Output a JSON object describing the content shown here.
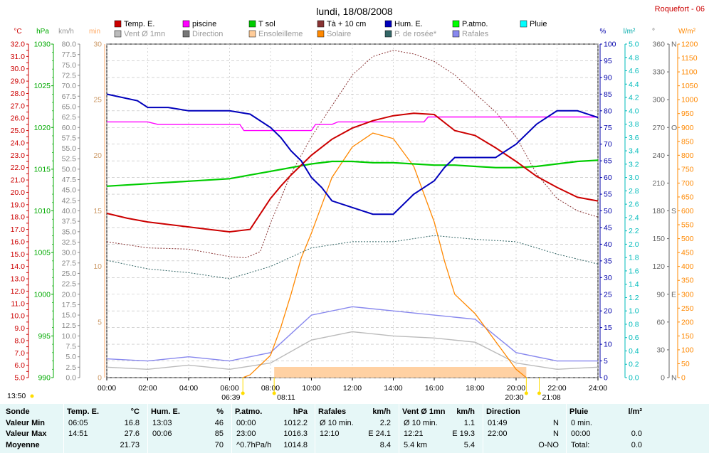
{
  "page": {
    "title": "lundi, 18/08/2008",
    "station": "Roquefort - 06"
  },
  "legend": [
    {
      "label": "Temp. E.",
      "color": "#cc0000"
    },
    {
      "label": "piscine",
      "color": "#ff00ff"
    },
    {
      "label": "T sol",
      "color": "#00cc00"
    },
    {
      "label": "Tà + 10 cm",
      "color": "#883333"
    },
    {
      "label": "Hum. E.",
      "color": "#0000bb"
    },
    {
      "label": "P.atmo.",
      "color": "#00ff00"
    },
    {
      "label": "Pluie",
      "color": "#00ffff"
    },
    {
      "label": "Vent Ø 1mn",
      "color": "#bbbbbb"
    },
    {
      "label": "Direction",
      "color": "#777777"
    },
    {
      "label": "Ensoleilleme",
      "color": "#ffcc99"
    },
    {
      "label": "Solaire",
      "color": "#ff8800"
    },
    {
      "label": "P. de rosée*",
      "color": "#336666"
    },
    {
      "label": "Rafales",
      "color": "#8888ee"
    }
  ],
  "axes": {
    "units": {
      "temp": "°C",
      "press": "hPa",
      "wind": "km/h",
      "min": "min",
      "hum": "%",
      "rain": "l/m²",
      "deg": "°",
      "solar": "W/m²"
    },
    "temp": {
      "min": 5,
      "max": 32,
      "step": 0.5,
      "label_step": 1,
      "color": "#cc0000"
    },
    "press": {
      "min": 990,
      "max": 1030,
      "ticks": [
        "990",
        "995",
        "1000",
        "1005",
        "1010",
        "1015",
        "1020",
        "1025",
        "1030"
      ],
      "color": "#00aa00"
    },
    "wind": {
      "min": 0,
      "max": 80,
      "step": 2.5,
      "color": "#888888"
    },
    "minutes": {
      "min": 0,
      "max": 30,
      "ticks": [
        "0",
        "5",
        "10",
        "15",
        "20",
        "25",
        "30"
      ],
      "color": "#ffaa66"
    },
    "hum": {
      "min": 0,
      "max": 100,
      "step": 5,
      "color": "#0000aa"
    },
    "rain": {
      "min": 0,
      "max": 5,
      "step": 0.2,
      "color": "#00bbbb"
    },
    "deg": {
      "min": 0,
      "max": 360,
      "step": 30,
      "dir_labels": {
        "0": "N",
        "90": "E",
        "180": "S",
        "270": "O",
        "360": "N"
      },
      "color": "#666666"
    },
    "solar": {
      "min": 0,
      "max": 1200,
      "step": 50,
      "color": "#ff8800"
    },
    "time_ticks": [
      "00:00",
      "02:00",
      "04:00",
      "06:00",
      "08:00",
      "10:00",
      "12:00",
      "14:00",
      "16:00",
      "18:00",
      "20:00",
      "22:00",
      "24:00"
    ]
  },
  "sun": {
    "markers": [
      {
        "label": "13:50",
        "hour": null,
        "row": 1
      },
      {
        "label": "06:39",
        "hour": 6.65,
        "row": 1
      },
      {
        "label": "08:11",
        "hour": 8.18,
        "row": 1
      },
      {
        "label": "20:30",
        "hour": 20.5,
        "row": 1
      },
      {
        "label": "21:08",
        "hour": 21.13,
        "row": 1
      }
    ]
  },
  "chart_data": {
    "type": "line",
    "x_unit": "hour of day",
    "series": [
      {
        "name": "Temp. E.",
        "axis": "temp",
        "x": [
          0,
          1,
          2,
          3,
          4,
          5,
          6,
          7,
          8,
          8.5,
          9,
          10,
          11,
          12,
          13,
          14,
          15,
          16,
          17,
          18,
          19,
          20,
          21,
          22,
          23,
          24
        ],
        "y": [
          18.3,
          17.9,
          17.6,
          17.4,
          17.2,
          17.0,
          16.8,
          17.0,
          19.5,
          20.5,
          21.4,
          23.0,
          24.3,
          25.2,
          25.8,
          26.2,
          26.4,
          26.3,
          25.0,
          24.6,
          23.6,
          22.5,
          21.3,
          20.4,
          19.6,
          19.3
        ]
      },
      {
        "name": "piscine",
        "axis": "temp",
        "x": [
          0,
          2,
          2.5,
          6.5,
          6.7,
          10,
          10.2,
          11,
          11.3,
          15.5,
          15.7,
          24
        ],
        "y": [
          25.7,
          25.7,
          25.5,
          25.5,
          25.0,
          25.0,
          25.5,
          25.5,
          25.7,
          25.7,
          26.1,
          26.1
        ]
      },
      {
        "name": "T sol",
        "axis": "temp",
        "x": [
          0,
          2,
          4,
          6,
          7,
          8,
          9,
          10,
          11,
          12,
          13,
          14,
          15,
          16,
          17,
          18,
          19,
          20,
          21,
          22,
          23,
          24
        ],
        "y": [
          20.5,
          20.7,
          20.9,
          21.1,
          21.4,
          21.7,
          22.0,
          22.3,
          22.5,
          22.5,
          22.4,
          22.4,
          22.3,
          22.2,
          22.2,
          22.1,
          22.0,
          22.0,
          22.1,
          22.3,
          22.5,
          22.6
        ]
      },
      {
        "name": "Tà + 10 cm",
        "axis": "temp",
        "x": [
          0,
          2,
          4,
          6,
          6.8,
          7.5,
          8,
          9,
          10,
          11,
          12,
          13,
          14,
          15,
          16,
          17,
          18,
          19,
          20,
          21,
          22,
          23,
          24
        ],
        "y": [
          16.0,
          15.5,
          15.4,
          14.8,
          14.7,
          15.2,
          17.5,
          21.5,
          24.5,
          27.0,
          29.5,
          31.0,
          31.5,
          31.2,
          30.6,
          29.5,
          28.0,
          26.5,
          24.5,
          21.5,
          19.5,
          18.5,
          18.0
        ]
      },
      {
        "name": "Hum. E.",
        "axis": "hum",
        "x": [
          0,
          1.5,
          2,
          3,
          4,
          5,
          6,
          7,
          8,
          8.5,
          9,
          9.5,
          10,
          10.5,
          11,
          12,
          13,
          14,
          15,
          16,
          16.5,
          17,
          18,
          19,
          20,
          21,
          22,
          23,
          24
        ],
        "y": [
          85,
          83,
          81,
          81,
          80,
          80,
          80,
          79,
          75,
          72,
          68,
          65,
          60,
          57,
          53,
          51,
          49,
          49,
          55,
          59,
          63,
          66,
          66,
          66,
          70,
          76,
          80,
          80,
          78
        ]
      },
      {
        "name": "P. de rosée*",
        "axis": "temp",
        "x": [
          0,
          2,
          4,
          6,
          8,
          10,
          12,
          14,
          16,
          18,
          20,
          22,
          24
        ],
        "y": [
          14.5,
          13.8,
          13.5,
          13.0,
          14.0,
          15.5,
          16.0,
          16.0,
          16.5,
          16.2,
          16.0,
          15.0,
          14.2
        ]
      },
      {
        "name": "Solaire",
        "axis": "solar",
        "x": [
          6.65,
          7,
          8,
          8.5,
          9,
          9.5,
          10,
          11,
          12,
          13,
          14,
          15,
          16,
          16.5,
          17,
          18,
          19,
          20,
          20.5
        ],
        "y": [
          0,
          10,
          80,
          180,
          300,
          430,
          520,
          720,
          830,
          880,
          860,
          760,
          560,
          420,
          300,
          230,
          130,
          30,
          0
        ]
      },
      {
        "name": "Rafales",
        "axis": "wind",
        "x": [
          0,
          2,
          4,
          6,
          8,
          10,
          12,
          14,
          16,
          18,
          20,
          22,
          24
        ],
        "y": [
          4.5,
          4.0,
          5.0,
          4.0,
          6.0,
          15.0,
          17.0,
          16.0,
          15.0,
          14.0,
          6.0,
          4.0,
          4.0
        ]
      },
      {
        "name": "Vent Ø 1mn",
        "axis": "wind",
        "x": [
          0,
          2,
          4,
          6,
          8,
          10,
          12,
          14,
          16,
          18,
          20,
          22,
          24
        ],
        "y": [
          2.5,
          2.0,
          3.0,
          2.0,
          3.5,
          9.0,
          11.0,
          10.0,
          9.5,
          8.5,
          3.5,
          2.0,
          2.5
        ]
      }
    ]
  },
  "table": {
    "rows": [
      "Valeur Min",
      "Valeur Max",
      "Moyenne"
    ],
    "row_header": "Sonde",
    "cols": [
      {
        "title": "Temp. E.",
        "unit": "°C",
        "min": [
          "06:05",
          "16.8"
        ],
        "max": [
          "14:51",
          "27.6"
        ],
        "avg": [
          "",
          "21.73"
        ]
      },
      {
        "title": "Hum. E.",
        "unit": "%",
        "min": [
          "13:03",
          "46"
        ],
        "max": [
          "00:06",
          "85"
        ],
        "avg": [
          "",
          "70"
        ]
      },
      {
        "title": "P.atmo.",
        "unit": "hPa",
        "min": [
          "00:00",
          "1012.2"
        ],
        "max": [
          "23:00",
          "1016.3"
        ],
        "avg": [
          "^0.7hPa/h",
          "1014.8"
        ]
      },
      {
        "title": "Rafales",
        "unit": "km/h",
        "min": [
          "Ø 10 min.",
          "2.2"
        ],
        "max": [
          "12:10",
          "E 24.1"
        ],
        "avg": [
          "",
          "8.4"
        ]
      },
      {
        "title": "Vent Ø 1mn",
        "unit": "km/h",
        "min": [
          "Ø 10 min.",
          "1.1"
        ],
        "max": [
          "12:21",
          "E 19.3"
        ],
        "avg": [
          "5.4 km",
          "5.4"
        ]
      },
      {
        "title": "Direction",
        "unit": "",
        "min": [
          "01:49",
          "N"
        ],
        "max": [
          "22:00",
          "N"
        ],
        "avg": [
          "",
          "O-NO"
        ]
      },
      {
        "title": "Pluie",
        "unit": "l/m²",
        "min": [
          "0 min.",
          ""
        ],
        "max": [
          "00:00",
          "0.0"
        ],
        "avg": [
          "Total:",
          "0.0"
        ]
      }
    ]
  }
}
